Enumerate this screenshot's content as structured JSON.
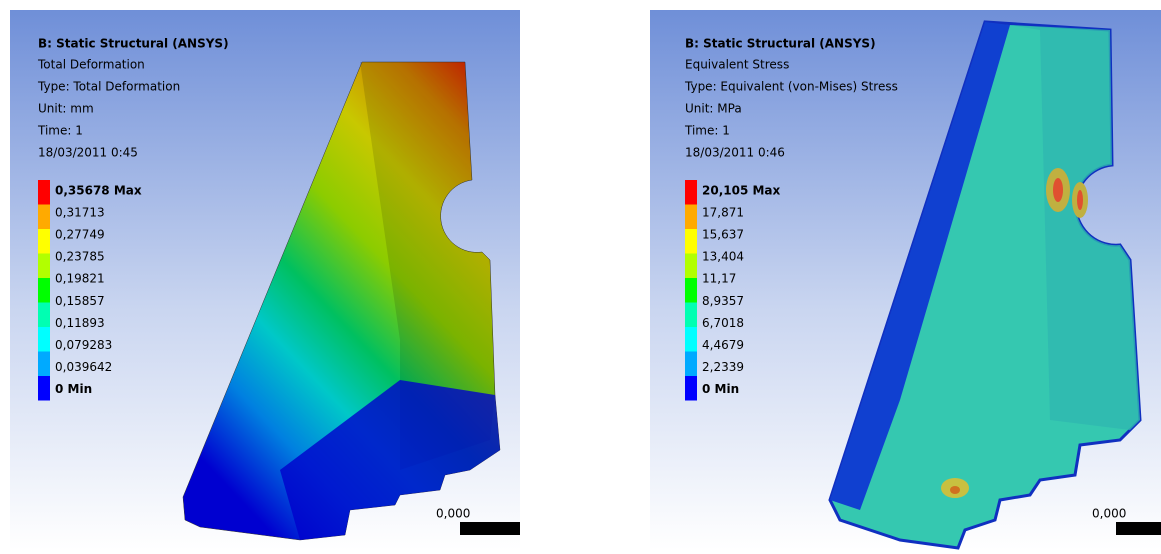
{
  "panels": [
    {
      "title": "B: Static Structural (ANSYS)",
      "lines": [
        "Total Deformation",
        "Type: Total Deformation",
        "Unit: mm",
        "Time: 1",
        "18/03/2011 0:45"
      ],
      "legend": [
        "0,35678 Max",
        "0,31713",
        "0,27749",
        "0,23785",
        "0,19821",
        "0,15857",
        "0,11893",
        "0,079283",
        "0,039642",
        "0 Min"
      ],
      "scale_label": "0,000"
    },
    {
      "title": "B: Static Structural (ANSYS)",
      "lines": [
        "Equivalent Stress",
        "Type: Equivalent (von-Mises) Stress",
        "Unit: MPa",
        "Time: 1",
        "18/03/2011 0:46"
      ],
      "legend": [
        "20,105 Max",
        "17,871",
        "15,637",
        "13,404",
        "11,17",
        "8,9357",
        "6,7018",
        "4,4679",
        "2,2339",
        "0 Min"
      ],
      "scale_label": "0,000"
    }
  ],
  "legend_colors": [
    "#ff0000",
    "#ffaa00",
    "#ffff00",
    "#b2ff00",
    "#00ff00",
    "#00ffb2",
    "#00ffff",
    "#00aaff",
    "#0000ff"
  ]
}
